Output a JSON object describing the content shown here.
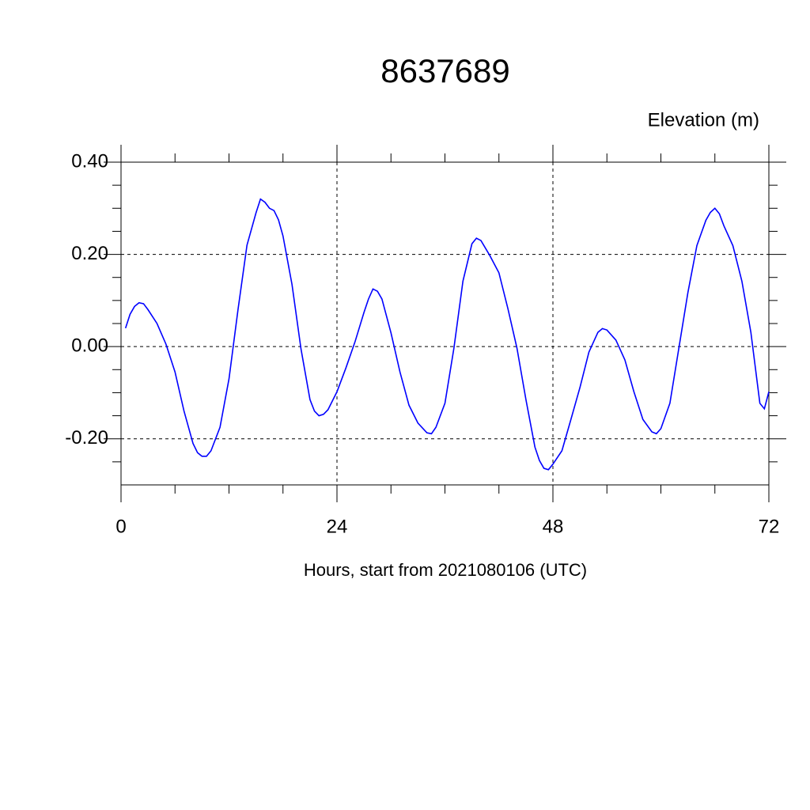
{
  "chart_data": {
    "type": "line",
    "title": "8637689",
    "subtitle": "Elevation (m)",
    "x_label": "Hours, start from 2021080106 (UTC)",
    "x": [
      0.5,
      1,
      1.5,
      2,
      2.5,
      3,
      4,
      5,
      6,
      7,
      8,
      8.5,
      9,
      9.5,
      10,
      11,
      12,
      13,
      14,
      15,
      15.5,
      16,
      16.5,
      17,
      17.5,
      18,
      19,
      20,
      21,
      21.5,
      22,
      22.5,
      23,
      24,
      25,
      26,
      27,
      27.5,
      28,
      28.5,
      29,
      30,
      31,
      32,
      33,
      34,
      34.5,
      35,
      36,
      37,
      38,
      39,
      39.5,
      40,
      41,
      42,
      43,
      44,
      45,
      46,
      46.5,
      47,
      47.5,
      48,
      49,
      50,
      51,
      52,
      53,
      53.5,
      54,
      55,
      56,
      57,
      58,
      59,
      59.5,
      60,
      61,
      62,
      63,
      64,
      65,
      65.5,
      66,
      66.5,
      67,
      68,
      69,
      70,
      70.5,
      71,
      71.5,
      72
    ],
    "series": [
      {
        "name": "Elevation",
        "color": "#0000ff",
        "values": [
          0.04,
          0.07,
          0.087,
          0.095,
          0.093,
          0.08,
          0.05,
          0.005,
          -0.055,
          -0.14,
          -0.21,
          -0.23,
          -0.238,
          -0.238,
          -0.226,
          -0.175,
          -0.07,
          0.08,
          0.22,
          0.29,
          0.32,
          0.313,
          0.3,
          0.295,
          0.275,
          0.24,
          0.135,
          -0.005,
          -0.115,
          -0.14,
          -0.15,
          -0.147,
          -0.137,
          -0.098,
          -0.046,
          0.01,
          0.074,
          0.103,
          0.125,
          0.12,
          0.103,
          0.03,
          -0.055,
          -0.127,
          -0.166,
          -0.187,
          -0.189,
          -0.175,
          -0.123,
          -0.003,
          0.142,
          0.223,
          0.235,
          0.23,
          0.197,
          0.16,
          0.082,
          -0.003,
          -0.115,
          -0.218,
          -0.247,
          -0.264,
          -0.267,
          -0.255,
          -0.226,
          -0.158,
          -0.089,
          -0.012,
          0.031,
          0.039,
          0.036,
          0.014,
          -0.029,
          -0.098,
          -0.158,
          -0.185,
          -0.189,
          -0.178,
          -0.123,
          -0.003,
          0.117,
          0.219,
          0.274,
          0.291,
          0.3,
          0.288,
          0.262,
          0.219,
          0.142,
          0.031,
          -0.046,
          -0.123,
          -0.135,
          -0.098
        ]
      }
    ],
    "xlim": [
      0,
      72
    ],
    "xticks": [
      0,
      24,
      48,
      72
    ],
    "xminorticks": [
      6,
      12,
      18,
      30,
      36,
      42,
      54,
      60,
      66
    ],
    "ylim": [
      -0.3,
      0.4
    ],
    "yticks": [
      {
        "value": -0.2,
        "label": "-0.20"
      },
      {
        "value": 0,
        "label": "0.00"
      },
      {
        "value": 0.2,
        "label": "0.20"
      },
      {
        "value": 0.4,
        "label": "0.40"
      }
    ],
    "yminorticks": [
      -0.25,
      -0.15,
      -0.1,
      -0.05,
      0.05,
      0.1,
      0.15,
      0.25,
      0.3,
      0.35
    ],
    "grid": true
  }
}
